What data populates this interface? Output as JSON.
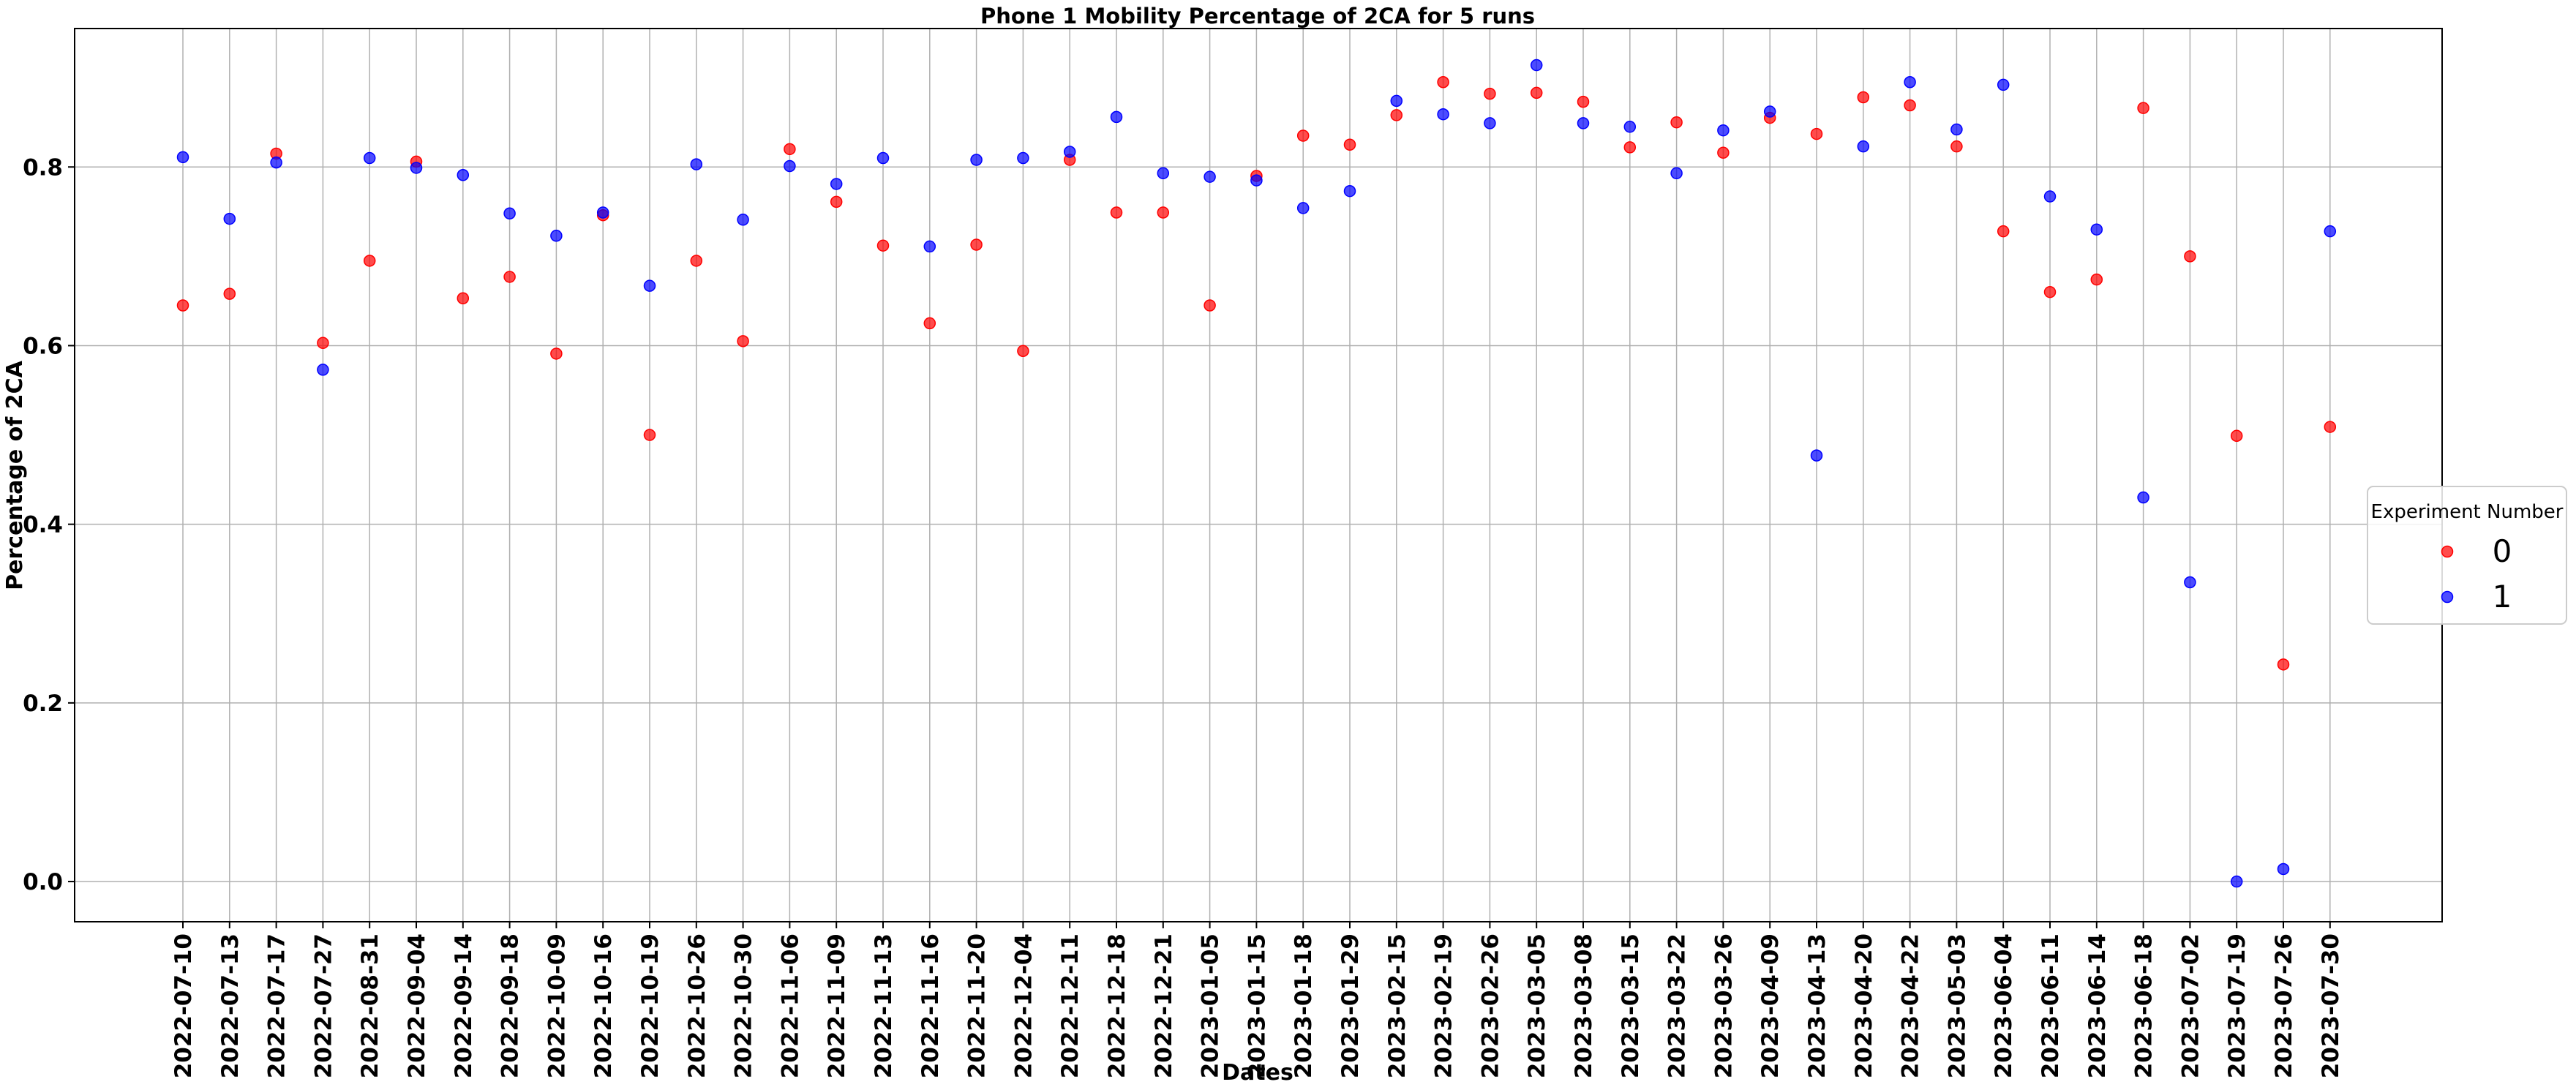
{
  "chart_data": {
    "type": "scatter",
    "title": "Phone 1 Mobility Percentage of 2CA for 5 runs",
    "xlabel": "Dates",
    "ylabel": "Percentage of 2CA",
    "ylim": [
      -0.045,
      0.955
    ],
    "yticks": [
      0.0,
      0.2,
      0.4,
      0.6,
      0.8
    ],
    "ytick_labels": [
      "0.0",
      "0.2",
      "0.4",
      "0.6",
      "0.8"
    ],
    "grid": true,
    "legend": {
      "title": "Experiment Number",
      "placement": "center-right"
    },
    "categories": [
      "2022-07-10",
      "2022-07-13",
      "2022-07-17",
      "2022-07-27",
      "2022-08-31",
      "2022-09-04",
      "2022-09-14",
      "2022-09-18",
      "2022-10-09",
      "2022-10-16",
      "2022-10-19",
      "2022-10-26",
      "2022-10-30",
      "2022-11-06",
      "2022-11-09",
      "2022-11-13",
      "2022-11-16",
      "2022-11-20",
      "2022-12-04",
      "2022-12-11",
      "2022-12-18",
      "2022-12-21",
      "2023-01-05",
      "2023-01-15",
      "2023-01-18",
      "2023-01-29",
      "2023-02-15",
      "2023-02-19",
      "2023-02-26",
      "2023-03-05",
      "2023-03-08",
      "2023-03-15",
      "2023-03-22",
      "2023-03-26",
      "2023-04-09",
      "2023-04-13",
      "2023-04-20",
      "2023-04-22",
      "2023-05-03",
      "2023-06-04",
      "2023-06-11",
      "2023-06-14",
      "2023-06-18",
      "2023-07-02",
      "2023-07-19",
      "2023-07-26",
      "2023-07-30"
    ],
    "series": [
      {
        "name": "0",
        "color": "#ff0000",
        "values": [
          0.645,
          0.658,
          0.815,
          0.603,
          0.695,
          0.806,
          0.653,
          0.677,
          0.591,
          0.746,
          0.5,
          0.695,
          0.605,
          0.82,
          0.761,
          0.712,
          0.625,
          0.713,
          0.594,
          0.808,
          0.749,
          0.749,
          0.645,
          0.79,
          0.835,
          0.825,
          0.858,
          0.895,
          0.882,
          0.883,
          0.873,
          0.822,
          0.85,
          0.816,
          0.855,
          0.837,
          0.878,
          0.869,
          0.823,
          0.728,
          0.66,
          0.674,
          0.866,
          0.7,
          0.499,
          0.243,
          0.509
        ]
      },
      {
        "name": "1",
        "color": "#0000ff",
        "values": [
          0.811,
          0.742,
          0.805,
          0.573,
          0.81,
          0.799,
          0.791,
          0.748,
          0.723,
          0.749,
          0.667,
          0.803,
          0.741,
          0.801,
          0.781,
          0.81,
          0.711,
          0.808,
          0.81,
          0.817,
          0.856,
          0.793,
          0.789,
          0.785,
          0.754,
          0.773,
          0.874,
          0.859,
          0.849,
          0.914,
          0.849,
          0.845,
          0.793,
          0.841,
          0.862,
          0.477,
          0.823,
          0.895,
          0.842,
          0.892,
          0.767,
          0.73,
          0.43,
          0.335,
          0.0,
          0.014,
          0.728
        ]
      }
    ]
  }
}
